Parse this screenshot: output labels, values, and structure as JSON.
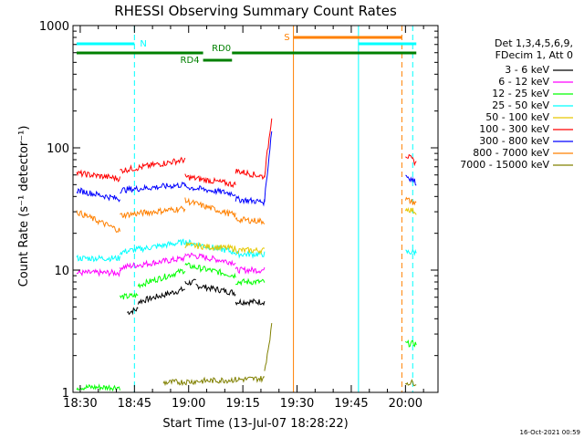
{
  "chart_data": {
    "type": "line",
    "title": "RHESSI Observing Summary Count Rates",
    "xlabel": "Start Time (13-Jul-07 18:28:22)",
    "ylabel": "Count Rate (s⁻¹ detector⁻¹)",
    "y_scale": "log",
    "ylim": [
      1,
      1000
    ],
    "x_range": [
      "18:28",
      "20:09"
    ],
    "x_tick_labels": [
      "18:30",
      "18:45",
      "19:00",
      "19:15",
      "19:30",
      "19:45",
      "20:00"
    ],
    "y_tick_labels": [
      "1",
      "10",
      "100",
      "1000"
    ],
    "grid": false,
    "legend_position": "right",
    "legend_header": [
      "Det 1,3,4,5,6,9,",
      "FDecim 1, Att 0"
    ],
    "footer": "16-Oct-2021 00:59",
    "series": [
      {
        "name": "3 - 6 keV",
        "color": "#000000",
        "segments": [
          {
            "x": [
              "18:43",
              "18:46"
            ],
            "y": [
              4.5,
              4.8
            ]
          },
          {
            "x": [
              "18:46",
              "18:59"
            ],
            "y": [
              5.5,
              7.0
            ]
          },
          {
            "x": [
              "18:59",
              "19:02"
            ],
            "y": [
              7.8,
              8.0
            ]
          },
          {
            "x": [
              "19:02",
              "19:13"
            ],
            "y": [
              7.5,
              6.5
            ]
          },
          {
            "x": [
              "19:13",
              "19:21"
            ],
            "y": [
              5.5,
              5.5
            ]
          }
        ]
      },
      {
        "name": "6 - 12 keV",
        "color": "#ff00ff",
        "segments": [
          {
            "x": [
              "18:29",
              "18:41"
            ],
            "y": [
              9.5,
              9.5
            ]
          },
          {
            "x": [
              "18:41",
              "18:59"
            ],
            "y": [
              10.5,
              12.5
            ]
          },
          {
            "x": [
              "18:59",
              "19:13"
            ],
            "y": [
              13.5,
              11.5
            ]
          },
          {
            "x": [
              "19:13",
              "19:21"
            ],
            "y": [
              10.0,
              10.0
            ]
          }
        ]
      },
      {
        "name": "12 - 25 keV",
        "color": "#00ff00",
        "segments": [
          {
            "x": [
              "18:29",
              "18:41"
            ],
            "y": [
              1.1,
              1.1
            ]
          },
          {
            "x": [
              "18:41",
              "18:46"
            ],
            "y": [
              6.0,
              6.2
            ]
          },
          {
            "x": [
              "18:46",
              "18:59"
            ],
            "y": [
              7.5,
              10.0
            ]
          },
          {
            "x": [
              "18:59",
              "19:13"
            ],
            "y": [
              11.0,
              9.0
            ]
          },
          {
            "x": [
              "19:13",
              "19:21"
            ],
            "y": [
              8.0,
              8.0
            ]
          },
          {
            "x": [
              "20:00",
              "20:03"
            ],
            "y": [
              2.5,
              2.5
            ]
          }
        ]
      },
      {
        "name": "25 - 50 keV",
        "color": "#00ffff",
        "segments": [
          {
            "x": [
              "18:29",
              "18:41"
            ],
            "y": [
              12.5,
              12.5
            ]
          },
          {
            "x": [
              "18:41",
              "18:59"
            ],
            "y": [
              14.0,
              17.0
            ]
          },
          {
            "x": [
              "18:59",
              "19:13"
            ],
            "y": [
              17.0,
              14.0
            ]
          },
          {
            "x": [
              "19:13",
              "19:21"
            ],
            "y": [
              13.5,
              13.5
            ]
          },
          {
            "x": [
              "20:00",
              "20:03"
            ],
            "y": [
              14.0,
              14.0
            ]
          }
        ]
      },
      {
        "name": "50 - 100 keV",
        "color": "#e6c800",
        "segments": [
          {
            "x": [
              "18:59",
              "19:13"
            ],
            "y": [
              16.0,
              15.0
            ]
          },
          {
            "x": [
              "19:13",
              "19:21"
            ],
            "y": [
              14.5,
              14.5
            ]
          },
          {
            "x": [
              "20:00",
              "20:03"
            ],
            "y": [
              32.0,
              30.0
            ]
          }
        ]
      },
      {
        "name": "100 - 300 keV",
        "color": "#ff0000",
        "segments": [
          {
            "x": [
              "18:29",
              "18:41"
            ],
            "y": [
              62,
              56
            ]
          },
          {
            "x": [
              "18:41",
              "18:59"
            ],
            "y": [
              65,
              80
            ]
          },
          {
            "x": [
              "18:59",
              "19:13"
            ],
            "y": [
              58,
              50
            ]
          },
          {
            "x": [
              "19:13",
              "19:21"
            ],
            "y": [
              65,
              58
            ]
          },
          {
            "x": [
              "19:21",
              "19:23"
            ],
            "y": [
              60,
              180
            ]
          },
          {
            "x": [
              "20:00",
              "20:03"
            ],
            "y": [
              88,
              75
            ]
          }
        ]
      },
      {
        "name": "300 - 800 keV",
        "color": "#0000ff",
        "segments": [
          {
            "x": [
              "18:29",
              "18:41"
            ],
            "y": [
              45,
              38
            ]
          },
          {
            "x": [
              "18:41",
              "18:59"
            ],
            "y": [
              45,
              50
            ]
          },
          {
            "x": [
              "18:59",
              "19:13"
            ],
            "y": [
              48,
              42
            ]
          },
          {
            "x": [
              "19:13",
              "19:21"
            ],
            "y": [
              38,
              36
            ]
          },
          {
            "x": [
              "19:21",
              "19:23"
            ],
            "y": [
              38,
              140
            ]
          },
          {
            "x": [
              "20:00",
              "20:03"
            ],
            "y": [
              60,
              52
            ]
          }
        ]
      },
      {
        "name": "800 - 7000 keV",
        "color": "#ff8000",
        "segments": [
          {
            "x": [
              "18:29",
              "18:41"
            ],
            "y": [
              30,
              21
            ]
          },
          {
            "x": [
              "18:41",
              "18:59"
            ],
            "y": [
              28,
              32
            ]
          },
          {
            "x": [
              "18:59",
              "19:13"
            ],
            "y": [
              37,
              28
            ]
          },
          {
            "x": [
              "19:13",
              "19:21"
            ],
            "y": [
              26,
              25
            ]
          },
          {
            "x": [
              "20:00",
              "20:03"
            ],
            "y": [
              38,
              35
            ]
          }
        ]
      },
      {
        "name": "7000 - 15000 keV",
        "color": "#808000",
        "segments": [
          {
            "x": [
              "18:53",
              "19:21"
            ],
            "y": [
              1.2,
              1.3
            ]
          },
          {
            "x": [
              "19:21",
              "19:23"
            ],
            "y": [
              1.5,
              3.5
            ]
          },
          {
            "x": [
              "20:00",
              "20:03"
            ],
            "y": [
              1.2,
              1.2
            ]
          }
        ]
      }
    ],
    "vertical_markers": [
      {
        "time": "18:45",
        "color": "#00ffff",
        "style": "dashed"
      },
      {
        "time": "19:29",
        "color": "#ff8000",
        "style": "solid"
      },
      {
        "time": "19:47",
        "color": "#00ffff",
        "style": "solid"
      },
      {
        "time": "19:59",
        "color": "#ff8000",
        "style": "dashed"
      },
      {
        "time": "20:02",
        "color": "#00ffff",
        "style": "dashed"
      }
    ],
    "flag_bars": [
      {
        "label": "N",
        "color": "#00ffff",
        "x": [
          [
            "18:29",
            "18:45"
          ],
          [
            "19:47",
            "20:03"
          ]
        ]
      },
      {
        "label": "S",
        "color": "#ff8000",
        "x": [
          [
            "19:29",
            "19:59"
          ]
        ]
      },
      {
        "label": "RD0",
        "color": "#008000",
        "x": [
          [
            "18:29",
            "19:04"
          ],
          [
            "19:12",
            "20:03"
          ]
        ]
      },
      {
        "label": "RD4",
        "color": "#008000",
        "x": [
          [
            "19:04",
            "19:12"
          ]
        ]
      }
    ]
  }
}
